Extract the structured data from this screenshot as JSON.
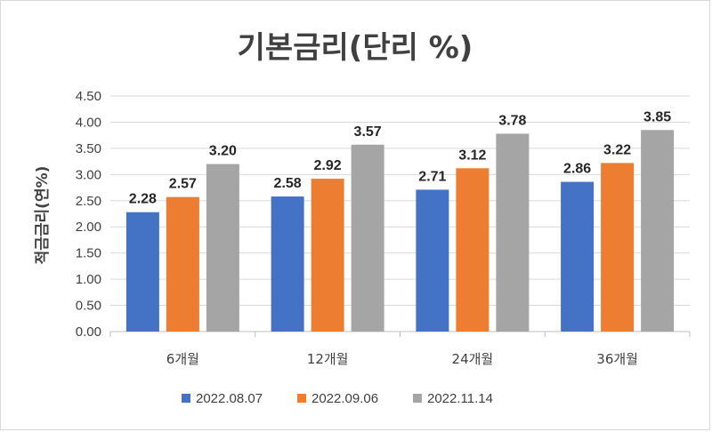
{
  "chart_data": {
    "type": "bar",
    "title": "기본금리(단리 %)",
    "ylabel": "적금금리(연%)",
    "xlabel": "",
    "ylim": [
      0,
      4.5
    ],
    "yticks": [
      "0.00",
      "0.50",
      "1.00",
      "1.50",
      "2.00",
      "2.50",
      "3.00",
      "3.50",
      "4.00",
      "4.50"
    ],
    "categories": [
      "6개월",
      "12개월",
      "24개월",
      "36개월"
    ],
    "series": [
      {
        "name": "2022.08.07",
        "color": "#4472c4",
        "values": [
          2.28,
          2.58,
          2.71,
          2.86
        ],
        "labels": [
          "2.28",
          "2.58",
          "2.71",
          "2.86"
        ]
      },
      {
        "name": "2022.09.06",
        "color": "#ed7d31",
        "values": [
          2.57,
          2.92,
          3.12,
          3.22
        ],
        "labels": [
          "2.57",
          "2.92",
          "3.12",
          "3.22"
        ]
      },
      {
        "name": "2022.11.14",
        "color": "#a5a5a5",
        "values": [
          3.2,
          3.57,
          3.78,
          3.85
        ],
        "labels": [
          "3.20",
          "3.57",
          "3.78",
          "3.85"
        ]
      }
    ],
    "grid": true,
    "legend": "bottom"
  }
}
